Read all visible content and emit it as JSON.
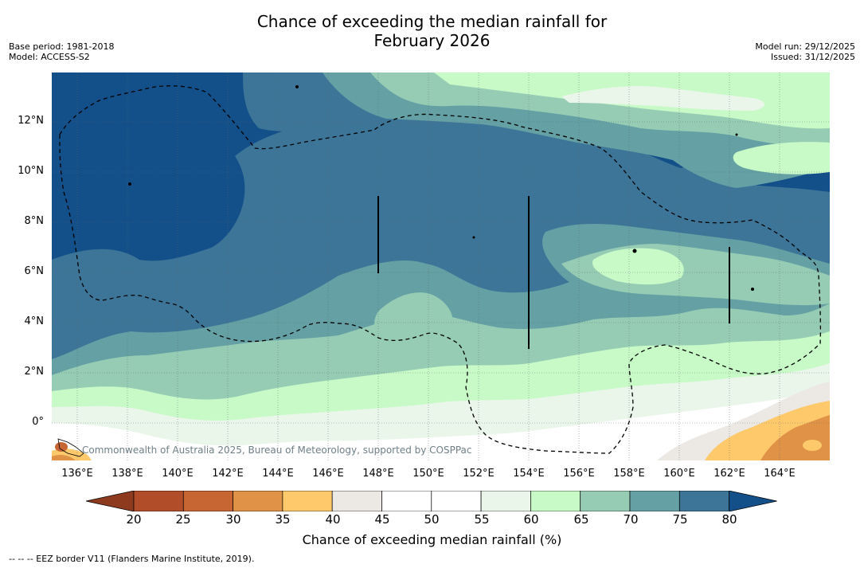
{
  "title_line1": "Chance of exceeding the median rainfall for",
  "title_line2": "February 2026",
  "base_period": "Base period: 1981-2018",
  "model": "Model: ACCESS-S2",
  "model_run": "Model run: 29/12/2025",
  "issued": "Issued: 31/12/2025",
  "lat_labels": [
    "12°N",
    "10°N",
    "8°N",
    "6°N",
    "4°N",
    "2°N",
    "0°"
  ],
  "lon_labels": [
    "136°E",
    "138°E",
    "140°E",
    "142°E",
    "144°E",
    "146°E",
    "148°E",
    "150°E",
    "152°E",
    "154°E",
    "156°E",
    "158°E",
    "160°E",
    "162°E",
    "164°E"
  ],
  "colorbar": {
    "ticks": [
      "20",
      "25",
      "30",
      "35",
      "40",
      "45",
      "50",
      "55",
      "60",
      "65",
      "70",
      "75",
      "80"
    ],
    "colors": [
      "#8d3a1f",
      "#b24d29",
      "#c86633",
      "#e09246",
      "#fdc96a",
      "#ece8e3",
      "#ffffff",
      "#ffffff",
      "#eaf6ea",
      "#c8fac8",
      "#96ccb4",
      "#65a0a4",
      "#3d7598",
      "#134f89"
    ],
    "title": "Chance of exceeding median rainfall (%)"
  },
  "copyright": "Commonwealth of Australia 2025, Bureau of Meteorology, supported by COSPPac",
  "footnote": "--  --  -- EEZ border V11 (Flanders Marine Institute, 2019)."
}
